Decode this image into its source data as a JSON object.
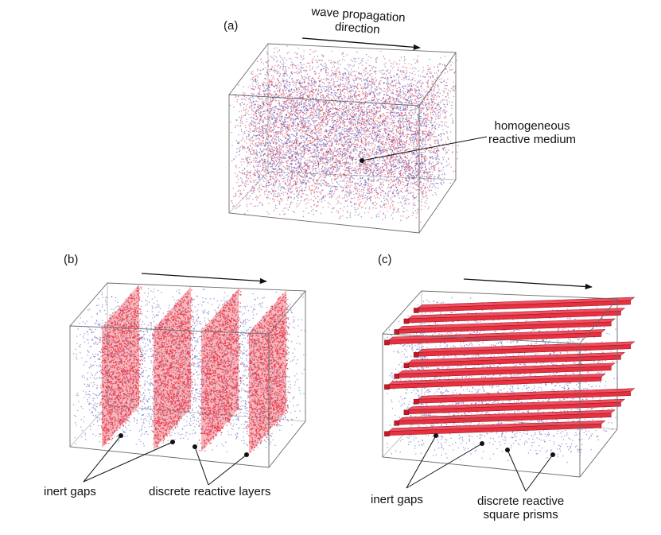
{
  "panels": {
    "a": {
      "label": "(a)",
      "arrow_caption_line1": "wave propagation",
      "arrow_caption_line2": "direction",
      "annotation_line1": "homogeneous",
      "annotation_line2": "reactive medium"
    },
    "b": {
      "label": "(b)",
      "annotation_gaps": "inert gaps",
      "annotation_layers": "discrete reactive layers"
    },
    "c": {
      "label": "(c)",
      "annotation_gaps": "inert gaps",
      "annotation_prisms_line1": "discrete reactive",
      "annotation_prisms_line2": "square prisms"
    }
  },
  "colors": {
    "reactive": "#e8303f",
    "inert": "#3b3fb5",
    "outline": "#6b6b6b",
    "text": "#111111"
  }
}
